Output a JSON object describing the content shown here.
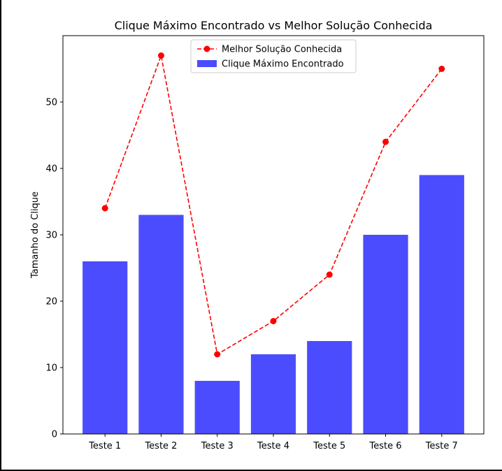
{
  "chart_data": {
    "type": "bar",
    "title": "Clique Máximo Encontrado vs Melhor Solução Conhecida",
    "xlabel": "",
    "ylabel": "Tamanho do Clique",
    "categories": [
      "Teste 1",
      "Teste 2",
      "Teste 3",
      "Teste 4",
      "Teste 5",
      "Teste 6",
      "Teste 7"
    ],
    "ylim": [
      0,
      60
    ],
    "yticks": [
      0,
      10,
      20,
      30,
      40,
      50
    ],
    "grid": false,
    "legend_position": "top-center",
    "series": [
      {
        "name": "Clique Máximo Encontrado",
        "kind": "bar",
        "color": "#4c4cff",
        "values": [
          26,
          33,
          8,
          12,
          14,
          30,
          39
        ]
      },
      {
        "name": "Melhor Solução Conhecida",
        "kind": "line",
        "style": "dashed",
        "marker": "circle",
        "color": "#ff0000",
        "values": [
          34,
          57,
          12,
          17,
          24,
          44,
          55
        ]
      }
    ]
  }
}
